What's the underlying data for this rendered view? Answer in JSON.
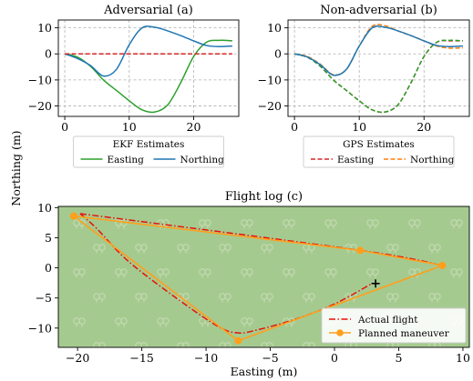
{
  "figure": {
    "ylabel_shared": "Northing (m)"
  },
  "chart_data": [
    {
      "id": "a",
      "type": "line",
      "title": "Adversarial (a)",
      "xlim": [
        -1,
        27
      ],
      "ylim": [
        -24,
        13
      ],
      "xticks": [
        0,
        10,
        20
      ],
      "yticks": [
        -20,
        -10,
        0,
        10
      ],
      "grid": true,
      "legend": {
        "title": "EKF Estimates",
        "placement": "below"
      },
      "series": [
        {
          "name": "Easting",
          "color": "#2ca02c",
          "dash": "solid",
          "x": [
            0,
            2,
            4,
            6,
            8,
            10,
            12,
            14,
            16,
            18,
            20,
            22,
            24,
            26
          ],
          "y": [
            0,
            -1.3,
            -4.8,
            -10,
            -14,
            -18,
            -21.5,
            -22.3,
            -19.5,
            -11,
            -1,
            4.5,
            5.2,
            5
          ]
        },
        {
          "name": "Northing",
          "color": "#1f77b4",
          "dash": "solid",
          "x": [
            0,
            2,
            4,
            6,
            8,
            10,
            12,
            14,
            16,
            18,
            20,
            22,
            24,
            26
          ],
          "y": [
            0,
            -1.8,
            -4.5,
            -8.5,
            -6,
            3.5,
            10,
            10.2,
            8.8,
            7,
            5,
            3.2,
            2.8,
            3
          ]
        },
        {
          "name": "",
          "color": "#d62728",
          "dash": "dashed",
          "x": [
            0,
            26
          ],
          "y": [
            0,
            0
          ]
        }
      ]
    },
    {
      "id": "b",
      "type": "line",
      "title": "Non-adversarial (b)",
      "xlim": [
        -1,
        27
      ],
      "ylim": [
        -24,
        13
      ],
      "xticks": [
        0,
        10,
        20
      ],
      "yticks": [
        -20,
        -10,
        0,
        10
      ],
      "grid": true,
      "legend": {
        "title": "GPS Estimates",
        "placement": "below"
      },
      "series": [
        {
          "name": "Easting",
          "color": "#d62728",
          "dash": "dashed",
          "x": [
            0,
            2,
            4,
            6,
            8,
            10,
            12,
            14,
            16,
            18,
            20,
            22,
            24,
            26
          ],
          "y": [
            0,
            -1.3,
            -4.8,
            -10,
            -14,
            -18,
            -21.5,
            -22.3,
            -19.5,
            -11,
            -1,
            4.5,
            5,
            5
          ]
        },
        {
          "name": "Northing",
          "color": "#ff7f0e",
          "dash": "dashed",
          "x": [
            0,
            2,
            4,
            6,
            8,
            10,
            12,
            14,
            16,
            18,
            20,
            22,
            24,
            26
          ],
          "y": [
            0,
            -1,
            -4,
            -8,
            -6,
            3,
            10.6,
            10.8,
            8.8,
            7,
            5,
            3,
            2.2,
            2.3
          ]
        },
        {
          "name": "",
          "color": "#2ca02c",
          "dash": "dashed",
          "x": [
            0,
            2,
            4,
            6,
            8,
            10,
            12,
            14,
            16,
            18,
            20,
            22,
            24,
            26
          ],
          "y": [
            0,
            -1.3,
            -4.8,
            -10,
            -14,
            -18,
            -21.5,
            -22.3,
            -19.5,
            -11,
            -1,
            4.5,
            5.2,
            5
          ]
        },
        {
          "name": "",
          "color": "#1f77b4",
          "dash": "solid",
          "x": [
            0,
            2,
            4,
            6,
            8,
            10,
            12,
            14,
            16,
            18,
            20,
            22,
            24,
            26
          ],
          "y": [
            0,
            -1.2,
            -4.2,
            -8.2,
            -6,
            3,
            10,
            10.2,
            8.8,
            7,
            5,
            3.2,
            2.8,
            3
          ]
        }
      ]
    },
    {
      "id": "c",
      "type": "line",
      "title": "Flight log (c)",
      "xlabel": "Easting (m)",
      "xlim": [
        -21.5,
        10.5
      ],
      "ylim": [
        -13.2,
        10.2
      ],
      "xticks": [
        -20,
        -15,
        -10,
        -5,
        0,
        5,
        10
      ],
      "yticks": [
        -10,
        -5,
        0,
        5,
        10
      ],
      "grid": false,
      "background_color": "#a5ca8f",
      "legend": {
        "placement": "lower-right"
      },
      "series": [
        {
          "name": "Actual flight",
          "color": "#e8100a",
          "dash": "dashdot",
          "x": [
            -19.8,
            -18.5,
            -16,
            -12,
            -9,
            -7.5,
            -6,
            -3,
            0,
            3
          ],
          "y": [
            9,
            6.5,
            1,
            -5.5,
            -9.8,
            -10.8,
            -10.3,
            -8.5,
            -6,
            -2.5
          ]
        },
        {
          "name": "",
          "color": "#e8100a",
          "dash": "dashdot",
          "x": [
            -19.8,
            2,
            8.4
          ],
          "y": [
            9,
            2.9,
            0.4
          ]
        },
        {
          "name": "Planned maneuver",
          "color": "#ff9f1c",
          "dash": "solid",
          "marker": "circle",
          "x": [
            -20.3,
            2,
            8.4,
            -7.5,
            -20.3
          ],
          "y": [
            8.6,
            2.9,
            0.4,
            -12.1,
            8.6
          ]
        },
        {
          "name": "",
          "type": "point",
          "marker": "plus",
          "color": "#000000",
          "x": [
            3.2
          ],
          "y": [
            -2.6
          ]
        }
      ]
    }
  ]
}
